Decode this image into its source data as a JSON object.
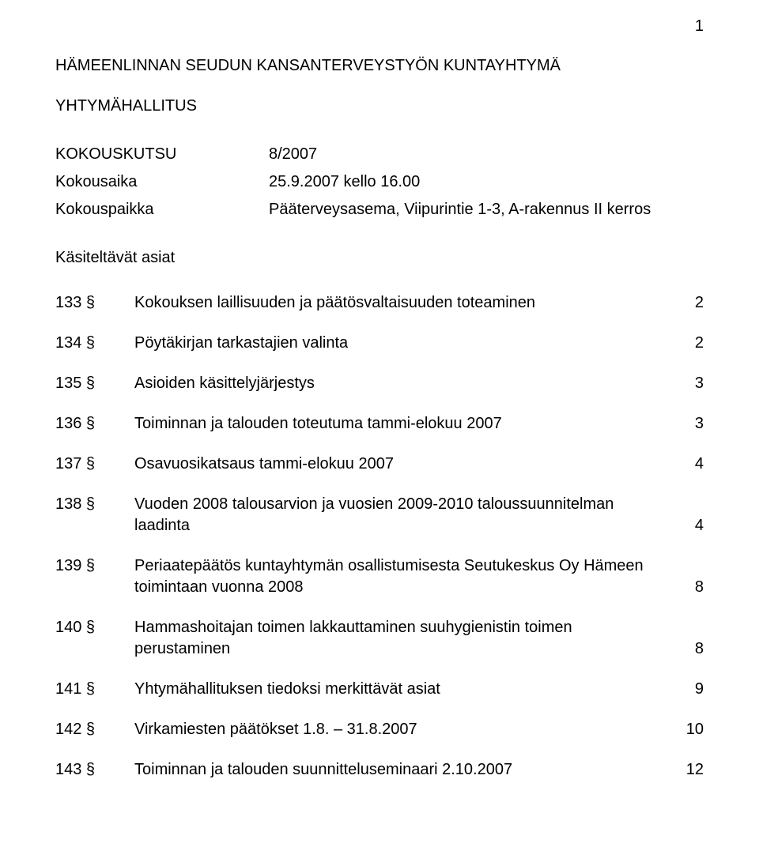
{
  "page_number": "1",
  "org_line": "HÄMEENLINNAN SEUDUN KANSANTERVEYSTYÖN KUNTAYHTYMÄ",
  "body_line": "YHTYMÄHALLITUS",
  "meta": {
    "kokouskutsu_label": "KOKOUSKUTSU",
    "kokouskutsu_value": "8/2007",
    "kokousaika_label": "Kokousaika",
    "kokousaika_value": "25.9.2007 kello 16.00",
    "kokouspaikka_label": "Kokouspaikka",
    "kokouspaikka_value": "Pääterveysasema, Viipurintie 1-3, A-rakennus II kerros"
  },
  "heading_items": "Käsiteltävät asiat",
  "agenda": [
    {
      "num": "133 §",
      "text": "Kokouksen laillisuuden ja päätösvaltaisuuden toteaminen",
      "page": "2"
    },
    {
      "num": "134 §",
      "text": "Pöytäkirjan tarkastajien valinta",
      "page": "2"
    },
    {
      "num": "135 §",
      "text": "Asioiden käsittelyjärjestys",
      "page": "3"
    },
    {
      "num": "136 §",
      "text": "Toiminnan ja talouden toteutuma tammi-elokuu 2007",
      "page": "3"
    },
    {
      "num": "137 §",
      "text": "Osavuosikatsaus tammi-elokuu 2007",
      "page": "4"
    },
    {
      "num": "138 §",
      "text": "Vuoden 2008 talousarvion ja vuosien 2009-2010 taloussuunnitelman laadinta",
      "page": "4"
    },
    {
      "num": "139 §",
      "text": "Periaatepäätös kuntayhtymän osallistumisesta Seutukeskus Oy Hämeen toimintaan vuonna 2008",
      "page": "8"
    },
    {
      "num": "140 §",
      "text": "Hammashoitajan toimen lakkauttaminen suuhygienistin toimen perustaminen",
      "page": "8"
    },
    {
      "num": "141 §",
      "text": "Yhtymähallituksen tiedoksi merkittävät asiat",
      "page": "9"
    },
    {
      "num": "142 §",
      "text": "Virkamiesten päätökset 1.8. – 31.8.2007",
      "page": "10"
    },
    {
      "num": "143 §",
      "text": "Toiminnan ja talouden suunnitteluseminaari 2.10.2007",
      "page": "12"
    }
  ]
}
